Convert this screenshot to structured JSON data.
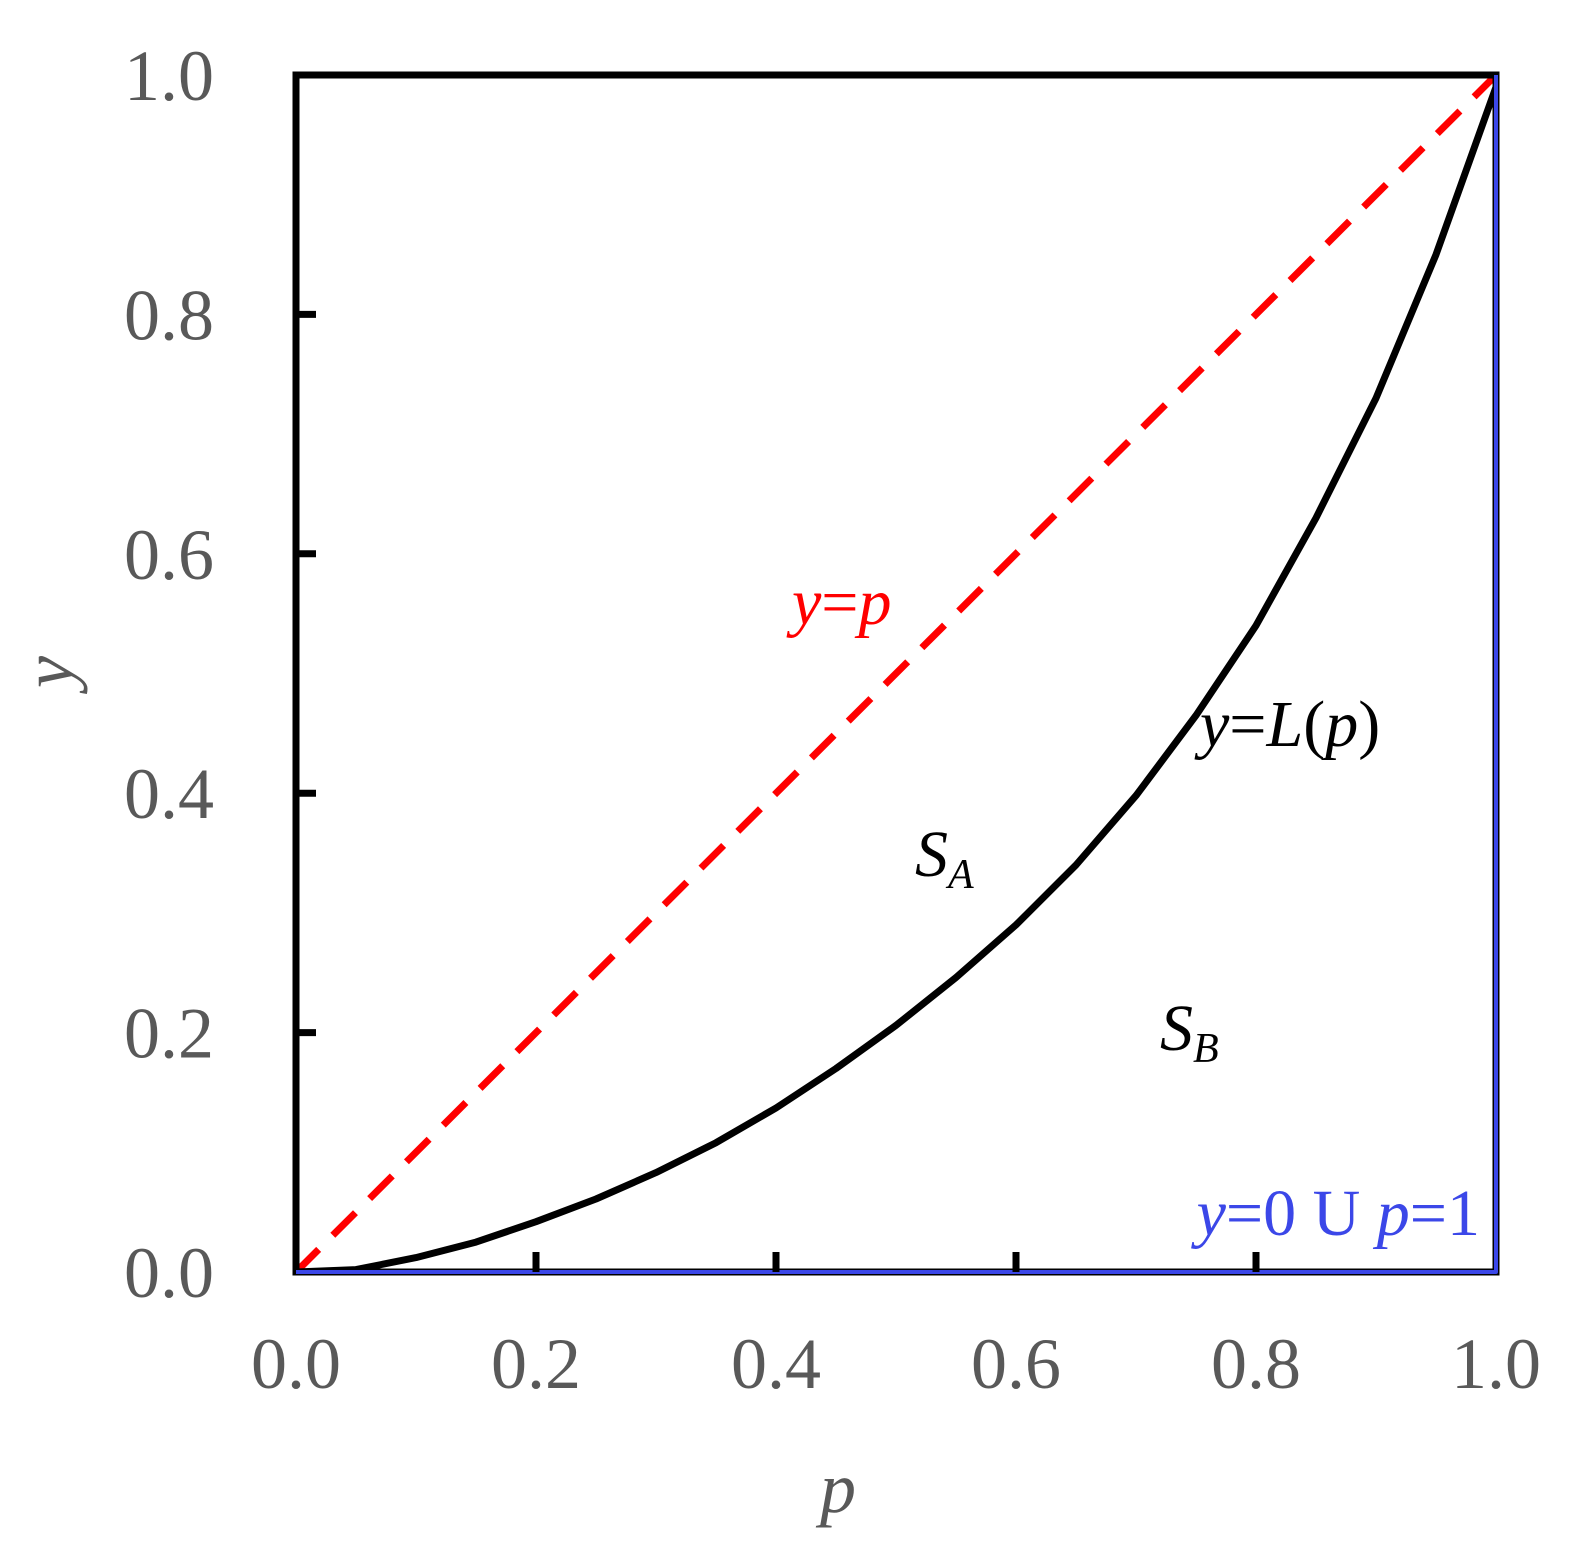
{
  "chart_data": {
    "type": "line",
    "xlabel": "p",
    "ylabel": "y",
    "xlim": [
      0.0,
      1.0
    ],
    "ylim": [
      0.0,
      1.0
    ],
    "x_ticks": [
      0.0,
      0.2,
      0.4,
      0.6,
      0.8,
      1.0
    ],
    "y_ticks": [
      0.0,
      0.2,
      0.4,
      0.6,
      0.8,
      1.0
    ],
    "x_tick_labels": [
      "0.0",
      "0.2",
      "0.4",
      "0.6",
      "0.8",
      "1.0"
    ],
    "y_tick_labels": [
      "0.0",
      "0.2",
      "0.4",
      "0.6",
      "0.8",
      "1.0"
    ],
    "grid": false,
    "legend": "none",
    "series": [
      {
        "color": "#ff0000",
        "style": "dashed",
        "x": [
          0.0,
          1.0
        ],
        "y": [
          0.0,
          1.0
        ]
      },
      {
        "color": "#000000",
        "style": "solid",
        "x": [
          0.0,
          0.05,
          0.1,
          0.15,
          0.2,
          0.25,
          0.3,
          0.35,
          0.4,
          0.45,
          0.5,
          0.55,
          0.6,
          0.65,
          0.7,
          0.75,
          0.8,
          0.85,
          0.9,
          0.95,
          1.0
        ],
        "y": [
          0.0,
          0.002,
          0.012,
          0.025,
          0.042,
          0.061,
          0.083,
          0.108,
          0.137,
          0.17,
          0.206,
          0.246,
          0.29,
          0.34,
          0.398,
          0.465,
          0.54,
          0.63,
          0.73,
          0.85,
          0.99
        ]
      },
      {
        "color": "#3b47e8",
        "style": "solid",
        "x": [
          0.0,
          1.0,
          1.0
        ],
        "y": [
          0.0,
          0.0,
          1.0
        ]
      }
    ],
    "annotations": {
      "diagonal": {
        "y": "y",
        "eq": "=",
        "p": "p",
        "color": "#ff0000"
      },
      "curve": {
        "y": "y",
        "eq": "=",
        "L": "L",
        "open": "(",
        "p": "p",
        "close": ")",
        "color": "#000000"
      },
      "region_a": {
        "S": "S",
        "sub": "A"
      },
      "region_b": {
        "S": "S",
        "sub": "B"
      },
      "boundary": {
        "y": "y",
        "eq1": "=0 ",
        "union": "U ",
        "p": "p",
        "eq2": "=1",
        "color": "#3b47e8"
      }
    }
  }
}
